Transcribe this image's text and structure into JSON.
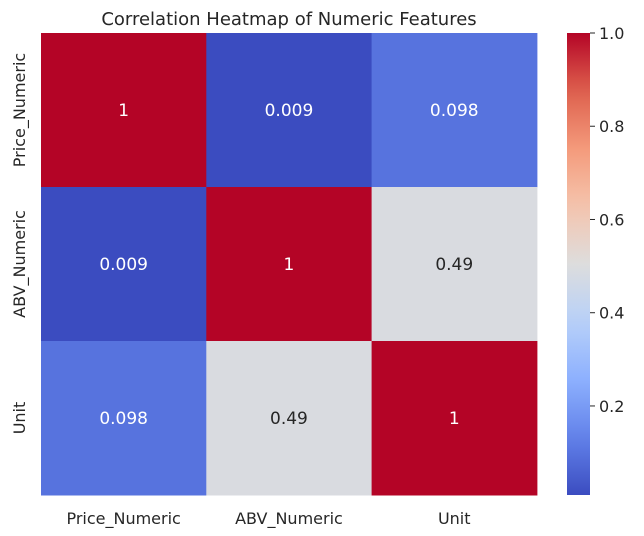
{
  "chart_data": {
    "type": "heatmap",
    "title": "Correlation Heatmap of Numeric Features",
    "x_categories": [
      "Price_Numeric",
      "ABV_Numeric",
      "Unit"
    ],
    "y_categories": [
      "Price_Numeric",
      "ABV_Numeric",
      "Unit"
    ],
    "values": [
      [
        1,
        0.009,
        0.098
      ],
      [
        0.009,
        1,
        0.49
      ],
      [
        0.098,
        0.49,
        1
      ]
    ],
    "annotations": [
      [
        "1",
        "0.009",
        "0.098"
      ],
      [
        "0.009",
        "1",
        "0.49"
      ],
      [
        "0.098",
        "0.49",
        "1"
      ]
    ],
    "colormap": "coolwarm",
    "vmin": 0.009,
    "vmax": 1,
    "colorbar_ticks": [
      0.2,
      0.4,
      0.6,
      0.8,
      1.0
    ],
    "colorbar_tick_labels": [
      "0.2",
      "0.4",
      "0.6",
      "0.8",
      "1.0"
    ],
    "xlabel": "",
    "ylabel": ""
  }
}
